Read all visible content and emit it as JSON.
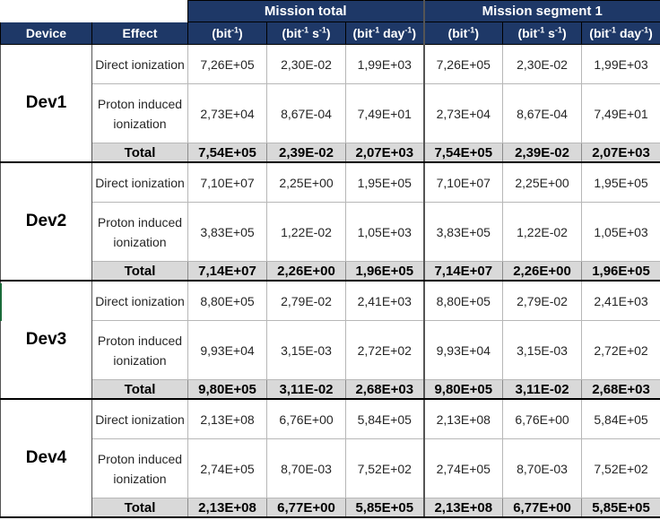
{
  "header": {
    "group1": "Mission total",
    "group2": "Mission segment 1",
    "col_device": "Device",
    "col_effect": "Effect",
    "unit_bit": {
      "pre": "(bit",
      "exp": "-1",
      "post": ")"
    },
    "unit_bit_s": {
      "pre": "(bit",
      "exp1": "-1",
      "mid": " s",
      "exp2": "-1",
      "post": ")"
    },
    "unit_bit_day": {
      "pre": "(bit",
      "exp1": "-1",
      "mid": " day",
      "exp2": "-1",
      "post": ")"
    }
  },
  "devices": [
    {
      "name": "Dev1",
      "direct": {
        "label": "Direct ionization",
        "values": [
          "7,26E+05",
          "2,30E-02",
          "1,99E+03",
          "7,26E+05",
          "2,30E-02",
          "1,99E+03"
        ]
      },
      "proton": {
        "label": "Proton induced ionization",
        "values": [
          "2,73E+04",
          "8,67E-04",
          "7,49E+01",
          "2,73E+04",
          "8,67E-04",
          "7,49E+01"
        ]
      },
      "total": {
        "label": "Total",
        "values": [
          "7,54E+05",
          "2,39E-02",
          "2,07E+03",
          "7,54E+05",
          "2,39E-02",
          "2,07E+03"
        ]
      }
    },
    {
      "name": "Dev2",
      "direct": {
        "label": "Direct ionization",
        "values": [
          "7,10E+07",
          "2,25E+00",
          "1,95E+05",
          "7,10E+07",
          "2,25E+00",
          "1,95E+05"
        ]
      },
      "proton": {
        "label": "Proton induced ionization",
        "values": [
          "3,83E+05",
          "1,22E-02",
          "1,05E+03",
          "3,83E+05",
          "1,22E-02",
          "1,05E+03"
        ]
      },
      "total": {
        "label": "Total",
        "values": [
          "7,14E+07",
          "2,26E+00",
          "1,96E+05",
          "7,14E+07",
          "2,26E+00",
          "1,96E+05"
        ]
      }
    },
    {
      "name": "Dev3",
      "direct": {
        "label": "Direct ionization",
        "values": [
          "8,80E+05",
          "2,79E-02",
          "2,41E+03",
          "8,80E+05",
          "2,79E-02",
          "2,41E+03"
        ]
      },
      "proton": {
        "label": "Proton induced ionization",
        "values": [
          "9,93E+04",
          "3,15E-03",
          "2,72E+02",
          "9,93E+04",
          "3,15E-03",
          "2,72E+02"
        ]
      },
      "total": {
        "label": "Total",
        "values": [
          "9,80E+05",
          "3,11E-02",
          "2,68E+03",
          "9,80E+05",
          "3,11E-02",
          "2,68E+03"
        ]
      }
    },
    {
      "name": "Dev4",
      "direct": {
        "label": "Direct ionization",
        "values": [
          "2,13E+08",
          "6,76E+00",
          "5,84E+05",
          "2,13E+08",
          "6,76E+00",
          "5,84E+05"
        ]
      },
      "proton": {
        "label": "Proton induced ionization",
        "values": [
          "2,74E+05",
          "8,70E-03",
          "7,52E+02",
          "2,74E+05",
          "8,70E-03",
          "7,52E+02"
        ]
      },
      "total": {
        "label": "Total",
        "values": [
          "2,13E+08",
          "6,77E+00",
          "5,85E+05",
          "2,13E+08",
          "6,77E+00",
          "5,85E+05"
        ]
      }
    }
  ]
}
